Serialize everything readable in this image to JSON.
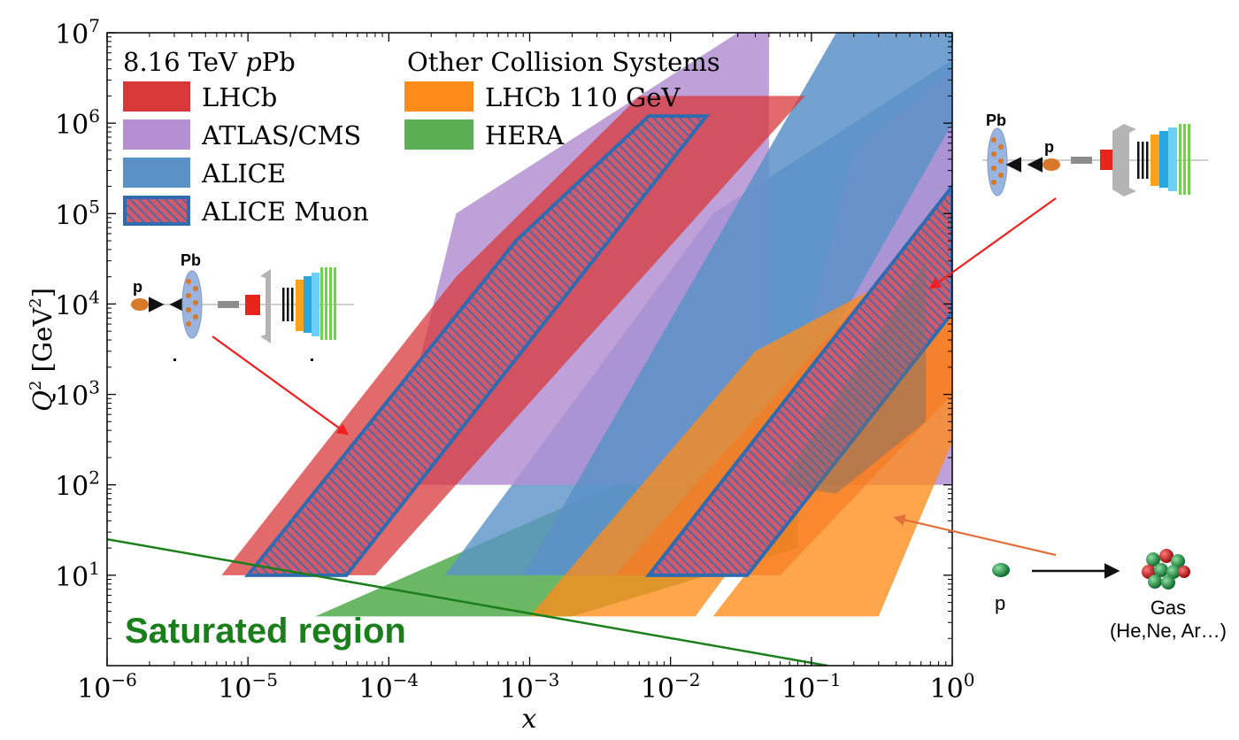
{
  "chart_data": {
    "type": "area",
    "title": "",
    "xlabel": "x",
    "ylabel": "Q² [GeV²]",
    "xscale": "log",
    "yscale": "log",
    "xlim": [
      1e-06,
      1
    ],
    "ylim": [
      1,
      10000000.0
    ],
    "x_ticks": [
      {
        "value": 1e-06,
        "base": "10",
        "exp": "−6"
      },
      {
        "value": 1e-05,
        "base": "10",
        "exp": "−5"
      },
      {
        "value": 0.0001,
        "base": "10",
        "exp": "−4"
      },
      {
        "value": 0.001,
        "base": "10",
        "exp": "−3"
      },
      {
        "value": 0.01,
        "base": "10",
        "exp": "−2"
      },
      {
        "value": 0.1,
        "base": "10",
        "exp": "−1"
      },
      {
        "value": 1,
        "base": "10",
        "exp": "0"
      }
    ],
    "y_ticks": [
      {
        "value": 10,
        "base": "10",
        "exp": "1"
      },
      {
        "value": 100,
        "base": "10",
        "exp": "2"
      },
      {
        "value": 1000,
        "base": "10",
        "exp": "3"
      },
      {
        "value": 10000,
        "base": "10",
        "exp": "4"
      },
      {
        "value": 100000,
        "base": "10",
        "exp": "5"
      },
      {
        "value": 1000000,
        "base": "10",
        "exp": "6"
      },
      {
        "value": 10000000,
        "base": "10",
        "exp": "7"
      }
    ],
    "legend_headers": [
      "8.16 TeV pPb",
      "Other Collision Systems"
    ],
    "regions": [
      {
        "name": "HERA",
        "color": "#5aaf54",
        "opacity": 0.9,
        "points": [
          [
            3e-05,
            3.5
          ],
          [
            0.002,
            3.5
          ],
          [
            0.08,
            20
          ],
          [
            0.08,
            100
          ],
          [
            0.004,
            100
          ]
        ]
      },
      {
        "name": "ALICE",
        "group": "backward",
        "color": "#5a92c8",
        "opacity": 0.8,
        "points": [
          [
            0.00025,
            10
          ],
          [
            0.005,
            10
          ],
          [
            1,
            8000
          ],
          [
            1,
            5000000.0
          ],
          [
            0.02,
            100000.0
          ]
        ]
      },
      {
        "name": "ATLAS/CMS",
        "group": "backward",
        "color": "#b490d2",
        "opacity": 0.85,
        "points": [
          [
            0.05,
            100
          ],
          [
            1,
            100
          ],
          [
            1,
            4000000.0
          ],
          [
            0.2,
            500000.0
          ]
        ]
      },
      {
        "name": "ATLAS/CMS",
        "group": "forward",
        "color": "#b490d2",
        "opacity": 0.85,
        "points": [
          [
            0.0001,
            100
          ],
          [
            0.05,
            100
          ],
          [
            0.05,
            10000000.0
          ],
          [
            0.03,
            10000000.0
          ],
          [
            0.0003,
            100000.0
          ]
        ]
      },
      {
        "name": "ALICE",
        "group": "forward",
        "color": "#5a92c8",
        "opacity": 0.85,
        "points": [
          [
            0.0009,
            10
          ],
          [
            0.015,
            10
          ],
          [
            1,
            1000000.0
          ],
          [
            1,
            10000000.0
          ],
          [
            0.15,
            10000000.0
          ]
        ]
      },
      {
        "name": "LHCb",
        "group": "forward",
        "color": "#d93838",
        "opacity": 0.75,
        "points": [
          [
            6.5e-06,
            10
          ],
          [
            8e-05,
            10
          ],
          [
            0.0003,
            100
          ],
          [
            0.09,
            2000000.0
          ],
          [
            0.006,
            2000000.0
          ],
          [
            0.0003,
            20000.0
          ]
        ]
      },
      {
        "name": "LHCb",
        "group": "backward",
        "color": "#d93838",
        "opacity": 0.65,
        "points": [
          [
            0.004,
            10
          ],
          [
            0.06,
            10
          ],
          [
            1,
            1000
          ],
          [
            1,
            150000.0
          ]
        ]
      },
      {
        "name": "LHCb 110 GeV",
        "group": "a",
        "color": "#ff8c1a",
        "opacity": 0.78,
        "points": [
          [
            0.001,
            3.5
          ],
          [
            0.015,
            3.5
          ],
          [
            0.65,
            10000.0
          ],
          [
            0.65,
            30000.0
          ],
          [
            0.04,
            3000
          ]
        ]
      },
      {
        "name": "LHCb 110 GeV",
        "group": "b",
        "color": "#ff8c1a",
        "opacity": 0.78,
        "points": [
          [
            0.02,
            3.5
          ],
          [
            0.3,
            3.5
          ],
          [
            1,
            300
          ],
          [
            1,
            9000
          ]
        ]
      },
      {
        "name": "ALICE Muon",
        "group": "forward",
        "color": "#2f6bb0",
        "hatched": true,
        "points": [
          [
            1e-05,
            10
          ],
          [
            5e-05,
            10
          ],
          [
            0.018,
            1200000.0
          ],
          [
            0.007,
            1200000.0
          ],
          [
            0.0008,
            50000.0
          ]
        ]
      },
      {
        "name": "ALICE Muon",
        "group": "backward",
        "color": "#2f6bb0",
        "hatched": true,
        "points": [
          [
            0.007,
            10
          ],
          [
            0.035,
            10
          ],
          [
            1,
            8000
          ],
          [
            1,
            200000.0
          ]
        ]
      },
      {
        "name": "shadow",
        "color": "#707070",
        "opacity": 0.45,
        "points": [
          [
            0.06,
            100
          ],
          [
            0.65,
            30000.0
          ],
          [
            0.65,
            500
          ],
          [
            0.15,
            80
          ]
        ]
      }
    ],
    "saturation_line": {
      "points": [
        [
          1e-06,
          25
        ],
        [
          0.13,
          1
        ]
      ],
      "color": "#1a7f1a"
    },
    "annotations": [
      "Saturated region"
    ],
    "arrows": [
      {
        "from": [
          240,
          380
        ],
        "to": [
          392,
          490
        ],
        "color": "#f02020"
      },
      {
        "from": [
          1193,
          224
        ],
        "to": [
          1052,
          325
        ],
        "color": "#f02020"
      },
      {
        "from": [
          1193,
          627
        ],
        "to": [
          1012,
          585
        ],
        "color": "#e2703a"
      }
    ]
  },
  "legend": {
    "header_left_prefix": "8.16 TeV ",
    "header_left_italic": "p",
    "header_left_suffix": "Pb",
    "header_right": "Other Collision Systems",
    "items": [
      {
        "label": "LHCb",
        "color": "#d93838"
      },
      {
        "label": "ATLAS/CMS",
        "color": "#b490d2"
      },
      {
        "label": "ALICE",
        "color": "#5a92c8"
      },
      {
        "label": "ALICE Muon",
        "color": "#2f6bb0"
      },
      {
        "label": "LHCb 110 GeV",
        "color": "#ff8c1a"
      },
      {
        "label": "HERA",
        "color": "#5aaf54"
      }
    ]
  },
  "axis_labels": {
    "x": "x",
    "y_q": "Q",
    "y_exp": "2",
    "y_units": " [GeV",
    "y_units_exp": "2",
    "y_close": "]"
  },
  "region_label": "Saturated region",
  "insets": {
    "ppb": {
      "p": "p",
      "pb": "Pb"
    },
    "pbp": {
      "p": "p",
      "pb": "Pb"
    },
    "fixed_target": {
      "p": "p",
      "gas": "Gas",
      "gas_list": "(He,Ne, Ar…)"
    }
  }
}
